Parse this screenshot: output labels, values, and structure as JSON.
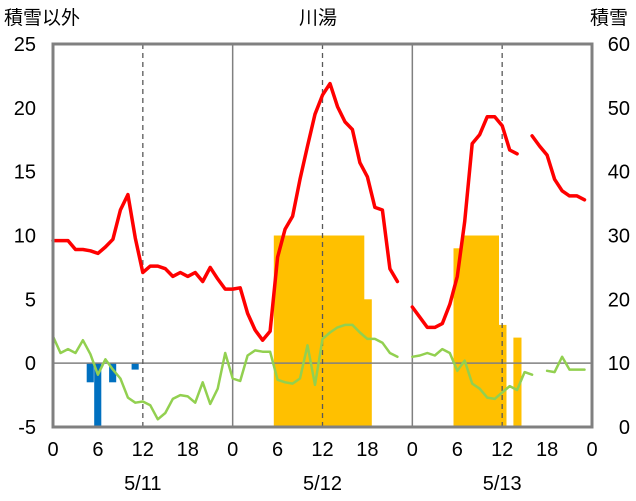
{
  "chart_data": {
    "type": "line",
    "title": "川湯",
    "left_axis_label": "積雪以外",
    "right_axis_label": "積雪",
    "ylim_left": [
      -5,
      25
    ],
    "ylim_right": [
      0,
      60
    ],
    "yticks_left": [
      "25",
      "20",
      "15",
      "10",
      "5",
      "0",
      "-5"
    ],
    "yticks_right": [
      "60",
      "50",
      "40",
      "30",
      "20",
      "10",
      "0"
    ],
    "xlim_hours": [
      0,
      72
    ],
    "xtick_labels": [
      "0",
      "6",
      "12",
      "18",
      "0",
      "6",
      "12",
      "18",
      "0",
      "6",
      "12",
      "18",
      "0"
    ],
    "day_labels": [
      "5/11",
      "5/12",
      "5/13"
    ],
    "grid": "dashed vertical lines at 12h; solid lines at day boundaries",
    "colors": {
      "temperature": "#ff0000",
      "wind": "#92d050",
      "precipitation": "#0070c0",
      "snow_depth": "#ffc000",
      "frame": "#808080"
    },
    "series": [
      {
        "key": "temperature",
        "axis": "left",
        "style": "line",
        "x": [
          0,
          1,
          2,
          3,
          4,
          5,
          6,
          7,
          8,
          9,
          10,
          11,
          12,
          13,
          14,
          15,
          16,
          17,
          18,
          19,
          20,
          21,
          22,
          23,
          24,
          25,
          26,
          27,
          28,
          29,
          30,
          31,
          32,
          33,
          34,
          35,
          36,
          37,
          38,
          39,
          40,
          41,
          42,
          43,
          44,
          45,
          46,
          47,
          48,
          49,
          50,
          51,
          52,
          53,
          54,
          55,
          56,
          57,
          58,
          59,
          60,
          61,
          62,
          63,
          64,
          65,
          66,
          67,
          68,
          69,
          70,
          71,
          72
        ],
        "values": [
          9.6,
          9.6,
          9.6,
          8.9,
          8.9,
          8.8,
          8.6,
          9.1,
          9.7,
          12.0,
          13.2,
          9.8,
          7.1,
          7.6,
          7.6,
          7.4,
          6.8,
          7.1,
          6.8,
          7.1,
          6.4,
          7.5,
          6.6,
          5.8,
          5.8,
          5.9,
          3.9,
          2.6,
          1.8,
          2.5,
          8.3,
          10.5,
          11.5,
          14.4,
          17.0,
          19.5,
          21.0,
          21.9,
          20.1,
          18.9,
          18.3,
          15.7,
          14.6,
          12.2,
          12.0,
          7.4,
          6.4,
          null,
          4.4,
          3.6,
          2.8,
          2.8,
          3.1,
          4.6,
          6.8,
          11.1,
          17.2,
          17.9,
          19.3,
          19.3,
          18.6,
          16.7,
          16.4,
          null,
          17.8,
          17.0,
          16.3,
          14.4,
          13.5,
          13.1,
          13.1,
          12.8,
          null
        ]
      },
      {
        "key": "wind",
        "axis": "left",
        "style": "line",
        "x": [
          0,
          1,
          2,
          3,
          4,
          5,
          6,
          7,
          8,
          9,
          10,
          11,
          12,
          13,
          14,
          15,
          16,
          17,
          18,
          19,
          20,
          21,
          22,
          23,
          24,
          25,
          26,
          27,
          28,
          29,
          30,
          31,
          32,
          33,
          34,
          35,
          36,
          37,
          38,
          39,
          40,
          41,
          42,
          43,
          44,
          45,
          46,
          47,
          48,
          49,
          50,
          51,
          52,
          53,
          54,
          55,
          56,
          57,
          58,
          59,
          60,
          61,
          62,
          63,
          64,
          65,
          66,
          67,
          68,
          69,
          70,
          71,
          72
        ],
        "values": [
          2.1,
          0.8,
          1.1,
          0.8,
          1.8,
          0.7,
          -0.9,
          0.3,
          -0.5,
          -1.2,
          -2.7,
          -3.1,
          -3.0,
          -3.3,
          -4.4,
          -3.9,
          -2.8,
          -2.5,
          -2.6,
          -3.1,
          -1.5,
          -3.2,
          -2.0,
          0.8,
          -1.2,
          -1.4,
          0.6,
          1.0,
          0.9,
          0.9,
          -1.3,
          -1.5,
          -1.6,
          -1.2,
          1.4,
          -1.7,
          1.9,
          2.4,
          2.8,
          3.0,
          3.0,
          2.4,
          1.9,
          1.9,
          1.6,
          0.8,
          0.5,
          null,
          0.5,
          0.6,
          0.8,
          0.6,
          1.1,
          0.8,
          -0.6,
          0.2,
          -1.6,
          -2.0,
          -2.7,
          -2.8,
          -2.3,
          -1.8,
          -2.1,
          -0.7,
          -0.9,
          null,
          -0.6,
          -0.7,
          0.5,
          -0.5,
          -0.5,
          -0.5,
          null
        ]
      },
      {
        "key": "precipitation",
        "axis": "left",
        "style": "bar",
        "x": [
          5,
          6,
          8,
          11
        ],
        "values": [
          -1.5,
          -5.0,
          -1.5,
          -0.5
        ]
      },
      {
        "key": "snow_depth",
        "axis": "right",
        "style": "bar",
        "x": [
          30,
          31,
          32,
          33,
          34,
          35,
          36,
          37,
          38,
          39,
          40,
          41,
          42,
          43,
          54,
          55,
          56,
          57,
          58,
          59,
          60,
          61,
          62,
          63
        ],
        "values": [
          30,
          30,
          30,
          30,
          30,
          30,
          30,
          30,
          30,
          30,
          30,
          30,
          20,
          0,
          28,
          30,
          30,
          30,
          30,
          30,
          16,
          0,
          14,
          0
        ],
        "sampled_hours": [
          30,
          31,
          32,
          33,
          34,
          35,
          36,
          37,
          38,
          39,
          40,
          41,
          42,
          54,
          55,
          56,
          57,
          58,
          59,
          60,
          62
        ],
        "sampled_values": [
          30,
          30,
          30,
          30,
          30,
          30,
          30,
          30,
          30,
          30,
          30,
          30,
          20,
          28,
          30,
          30,
          30,
          30,
          30,
          16,
          14
        ]
      }
    ]
  }
}
